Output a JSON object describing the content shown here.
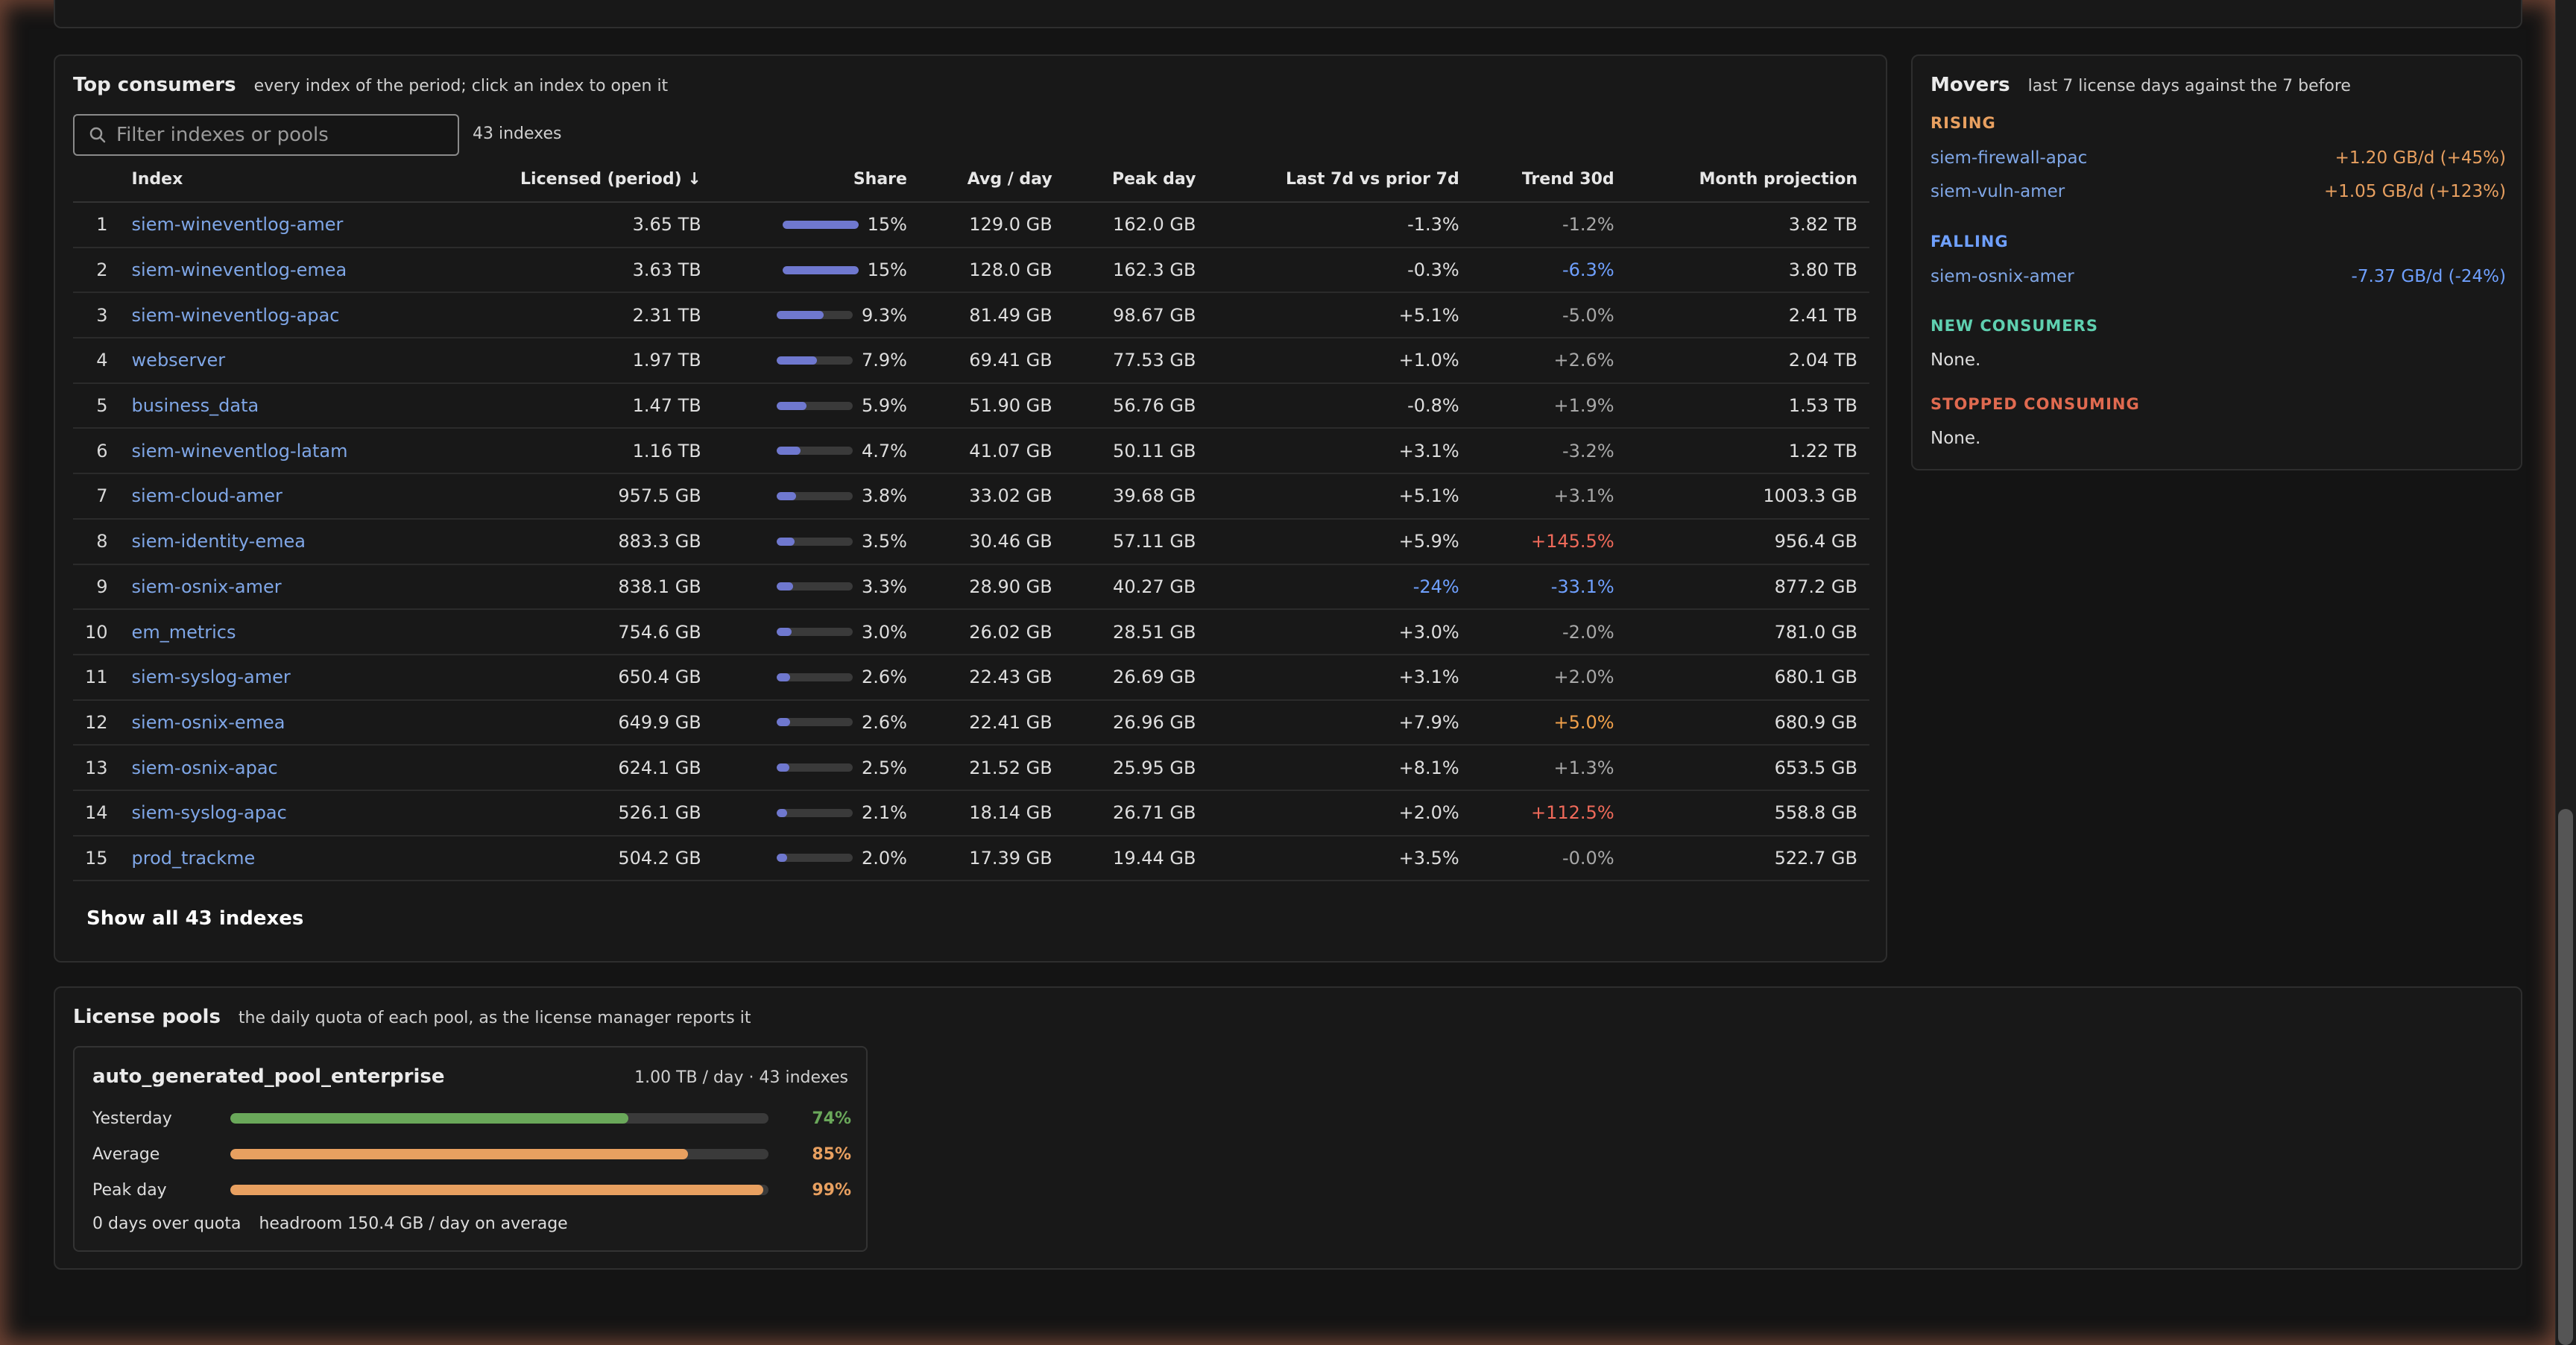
{
  "consumers": {
    "title": "Top consumers",
    "subtitle": "every index of the period; click an index to open it",
    "filter_placeholder": "Filter indexes or pools",
    "count": "43 indexes",
    "columns": [
      "",
      "Index",
      "Licensed (period) ↓",
      "Share",
      "Avg / day",
      "Peak day",
      "Last 7d vs prior 7d",
      "Trend 30d",
      "Month projection"
    ],
    "rows": [
      {
        "rank": "1",
        "index": "siem-wineventlog-amer",
        "licensed": "3.65 TB",
        "share": "15%",
        "share_pct": 15,
        "avg": "129.0 GB",
        "peak": "162.0 GB",
        "last7": "-1.3%",
        "last7_tone": "",
        "trend": "-1.2%",
        "trend_tone": "muted",
        "proj": "3.82 TB"
      },
      {
        "rank": "2",
        "index": "siem-wineventlog-emea",
        "licensed": "3.63 TB",
        "share": "15%",
        "share_pct": 15,
        "avg": "128.0 GB",
        "peak": "162.3 GB",
        "last7": "-0.3%",
        "last7_tone": "",
        "trend": "-6.3%",
        "trend_tone": "neg",
        "proj": "3.80 TB"
      },
      {
        "rank": "3",
        "index": "siem-wineventlog-apac",
        "licensed": "2.31 TB",
        "share": "9.3%",
        "share_pct": 9.3,
        "avg": "81.49 GB",
        "peak": "98.67 GB",
        "last7": "+5.1%",
        "last7_tone": "",
        "trend": "-5.0%",
        "trend_tone": "muted",
        "proj": "2.41 TB"
      },
      {
        "rank": "4",
        "index": "webserver",
        "licensed": "1.97 TB",
        "share": "7.9%",
        "share_pct": 7.9,
        "avg": "69.41 GB",
        "peak": "77.53 GB",
        "last7": "+1.0%",
        "last7_tone": "",
        "trend": "+2.6%",
        "trend_tone": "muted",
        "proj": "2.04 TB"
      },
      {
        "rank": "5",
        "index": "business_data",
        "licensed": "1.47 TB",
        "share": "5.9%",
        "share_pct": 5.9,
        "avg": "51.90 GB",
        "peak": "56.76 GB",
        "last7": "-0.8%",
        "last7_tone": "",
        "trend": "+1.9%",
        "trend_tone": "muted",
        "proj": "1.53 TB"
      },
      {
        "rank": "6",
        "index": "siem-wineventlog-latam",
        "licensed": "1.16 TB",
        "share": "4.7%",
        "share_pct": 4.7,
        "avg": "41.07 GB",
        "peak": "50.11 GB",
        "last7": "+3.1%",
        "last7_tone": "",
        "trend": "-3.2%",
        "trend_tone": "muted",
        "proj": "1.22 TB"
      },
      {
        "rank": "7",
        "index": "siem-cloud-amer",
        "licensed": "957.5 GB",
        "share": "3.8%",
        "share_pct": 3.8,
        "avg": "33.02 GB",
        "peak": "39.68 GB",
        "last7": "+5.1%",
        "last7_tone": "",
        "trend": "+3.1%",
        "trend_tone": "muted",
        "proj": "1003.3 GB"
      },
      {
        "rank": "8",
        "index": "siem-identity-emea",
        "licensed": "883.3 GB",
        "share": "3.5%",
        "share_pct": 3.5,
        "avg": "30.46 GB",
        "peak": "57.11 GB",
        "last7": "+5.9%",
        "last7_tone": "",
        "trend": "+145.5%",
        "trend_tone": "hot",
        "proj": "956.4 GB"
      },
      {
        "rank": "9",
        "index": "siem-osnix-amer",
        "licensed": "838.1 GB",
        "share": "3.3%",
        "share_pct": 3.3,
        "avg": "28.90 GB",
        "peak": "40.27 GB",
        "last7": "-24%",
        "last7_tone": "neg",
        "trend": "-33.1%",
        "trend_tone": "neg",
        "proj": "877.2 GB"
      },
      {
        "rank": "10",
        "index": "em_metrics",
        "licensed": "754.6 GB",
        "share": "3.0%",
        "share_pct": 3.0,
        "avg": "26.02 GB",
        "peak": "28.51 GB",
        "last7": "+3.0%",
        "last7_tone": "",
        "trend": "-2.0%",
        "trend_tone": "muted",
        "proj": "781.0 GB"
      },
      {
        "rank": "11",
        "index": "siem-syslog-amer",
        "licensed": "650.4 GB",
        "share": "2.6%",
        "share_pct": 2.6,
        "avg": "22.43 GB",
        "peak": "26.69 GB",
        "last7": "+3.1%",
        "last7_tone": "",
        "trend": "+2.0%",
        "trend_tone": "muted",
        "proj": "680.1 GB"
      },
      {
        "rank": "12",
        "index": "siem-osnix-emea",
        "licensed": "649.9 GB",
        "share": "2.6%",
        "share_pct": 2.6,
        "avg": "22.41 GB",
        "peak": "26.96 GB",
        "last7": "+7.9%",
        "last7_tone": "",
        "trend": "+5.0%",
        "trend_tone": "warm",
        "proj": "680.9 GB"
      },
      {
        "rank": "13",
        "index": "siem-osnix-apac",
        "licensed": "624.1 GB",
        "share": "2.5%",
        "share_pct": 2.5,
        "avg": "21.52 GB",
        "peak": "25.95 GB",
        "last7": "+8.1%",
        "last7_tone": "",
        "trend": "+1.3%",
        "trend_tone": "muted",
        "proj": "653.5 GB"
      },
      {
        "rank": "14",
        "index": "siem-syslog-apac",
        "licensed": "526.1 GB",
        "share": "2.1%",
        "share_pct": 2.1,
        "avg": "18.14 GB",
        "peak": "26.71 GB",
        "last7": "+2.0%",
        "last7_tone": "",
        "trend": "+112.5%",
        "trend_tone": "hot",
        "proj": "558.8 GB"
      },
      {
        "rank": "15",
        "index": "prod_trackme",
        "licensed": "504.2 GB",
        "share": "2.0%",
        "share_pct": 2.0,
        "avg": "17.39 GB",
        "peak": "19.44 GB",
        "last7": "+3.5%",
        "last7_tone": "",
        "trend": "-0.0%",
        "trend_tone": "muted",
        "proj": "522.7 GB"
      }
    ],
    "show_all": "Show all 43 indexes"
  },
  "movers": {
    "title": "Movers",
    "subtitle": "last 7 license days against the 7 before",
    "rising_label": "RISING",
    "rising": [
      {
        "index": "siem-firewall-apac",
        "delta": "+1.20 GB/d (+45%)"
      },
      {
        "index": "siem-vuln-amer",
        "delta": "+1.05 GB/d (+123%)"
      }
    ],
    "falling_label": "FALLING",
    "falling": [
      {
        "index": "siem-osnix-amer",
        "delta": "-7.37 GB/d (-24%)"
      }
    ],
    "new_label": "NEW CONSUMERS",
    "new_value": "None.",
    "stopped_label": "STOPPED CONSUMING",
    "stopped_value": "None."
  },
  "pools": {
    "title": "License pools",
    "subtitle": "the daily quota of each pool, as the license manager reports it",
    "pool": {
      "name": "auto_generated_pool_enterprise",
      "meta": "1.00 TB / day · 43 indexes",
      "rows": [
        {
          "label": "Yesterday",
          "pct": "74%",
          "value": 74,
          "color": "#6aa85a"
        },
        {
          "label": "Average",
          "pct": "85%",
          "value": 85,
          "color": "#e8a060"
        },
        {
          "label": "Peak day",
          "pct": "99%",
          "value": 99,
          "color": "#e8a060"
        }
      ],
      "over_quota": "0 days over quota",
      "headroom": "headroom 150.4 GB / day on average"
    }
  },
  "colors": {
    "accent_link": "#7fa6e6",
    "share_bar": "#6f78cf",
    "rising": "#e8a060",
    "falling": "#6fa0ff",
    "new": "#5fd0b0",
    "stopped": "#e06a50"
  }
}
